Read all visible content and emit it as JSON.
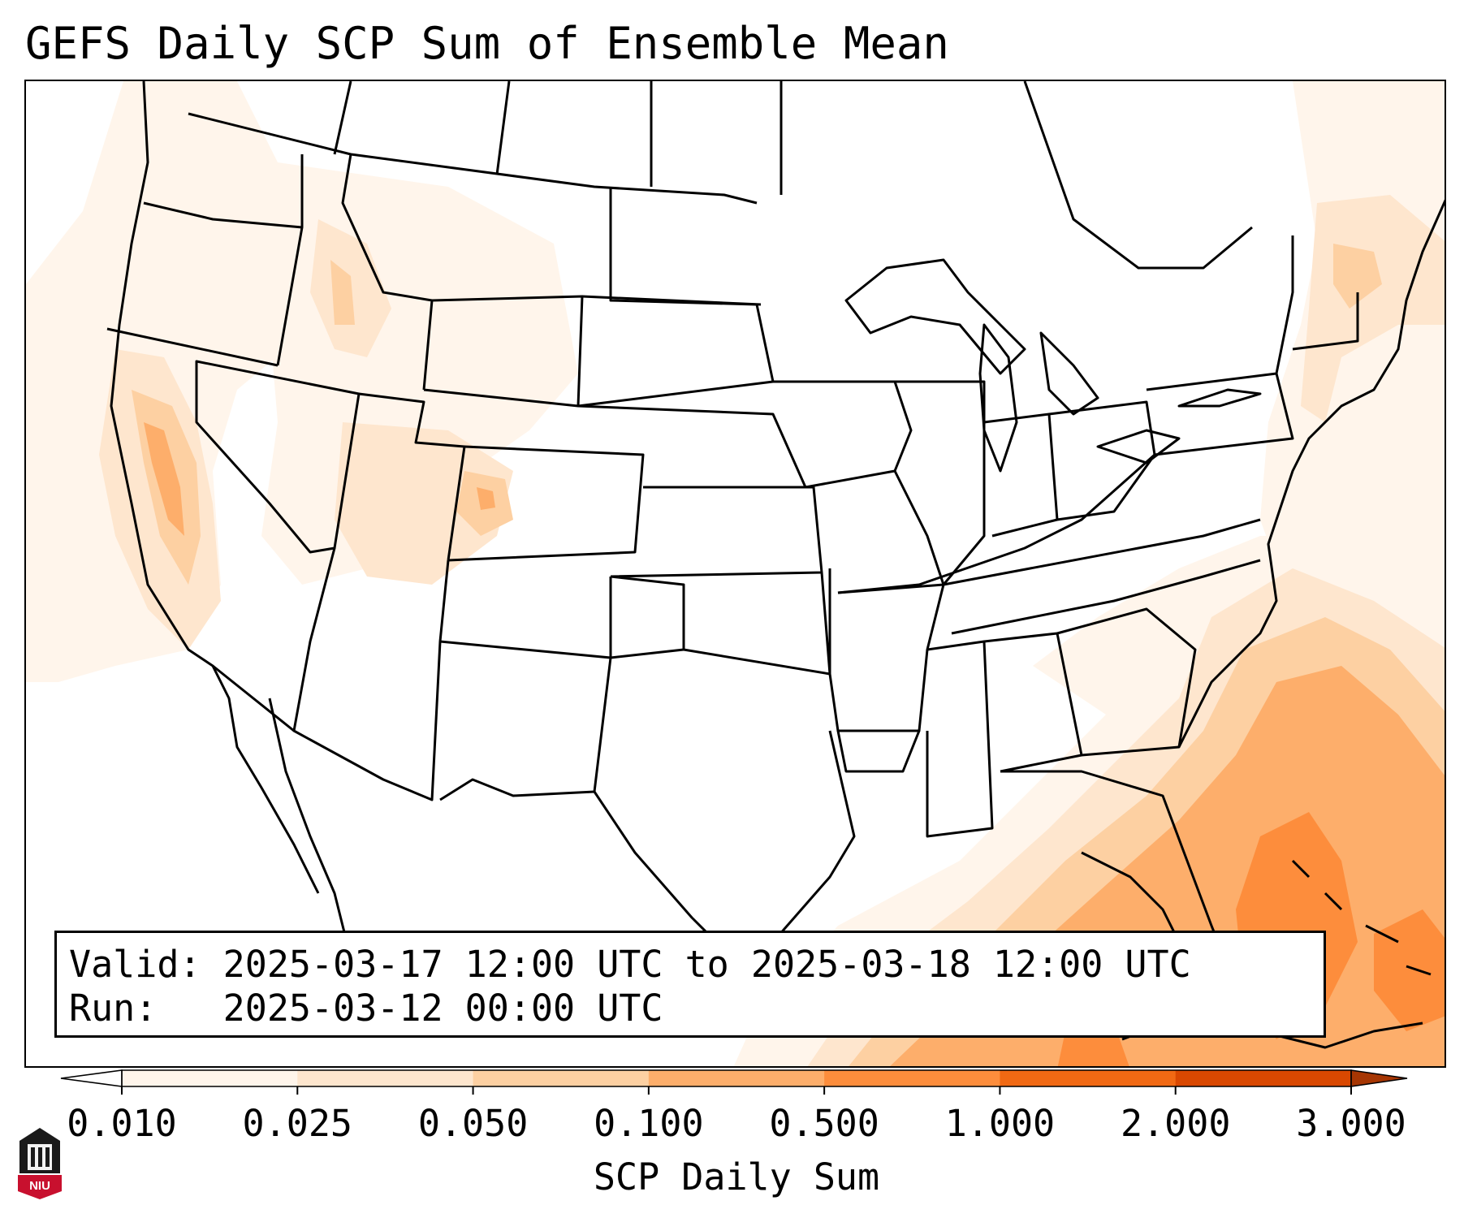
{
  "title": "GEFS Daily SCP Sum of Ensemble Mean",
  "info": {
    "valid_line": "Valid: 2025-03-17 12:00 UTC to 2025-03-18 12:00 UTC",
    "run_line": "Run:   2025-03-12 00:00 UTC"
  },
  "colorbar": {
    "label": "SCP Daily Sum",
    "ticks": [
      "0.010",
      "0.025",
      "0.050",
      "0.100",
      "0.500",
      "1.000",
      "2.000",
      "3.000"
    ],
    "colors": [
      "#fff5eb",
      "#fee6ce",
      "#fdd0a2",
      "#fdae6b",
      "#fd8d3c",
      "#f16913",
      "#d94801"
    ],
    "under_color": "#ffffff",
    "over_color": "#a63603"
  },
  "logo": {
    "text": "NIU",
    "icon": "niu-tower-logo-icon"
  }
}
